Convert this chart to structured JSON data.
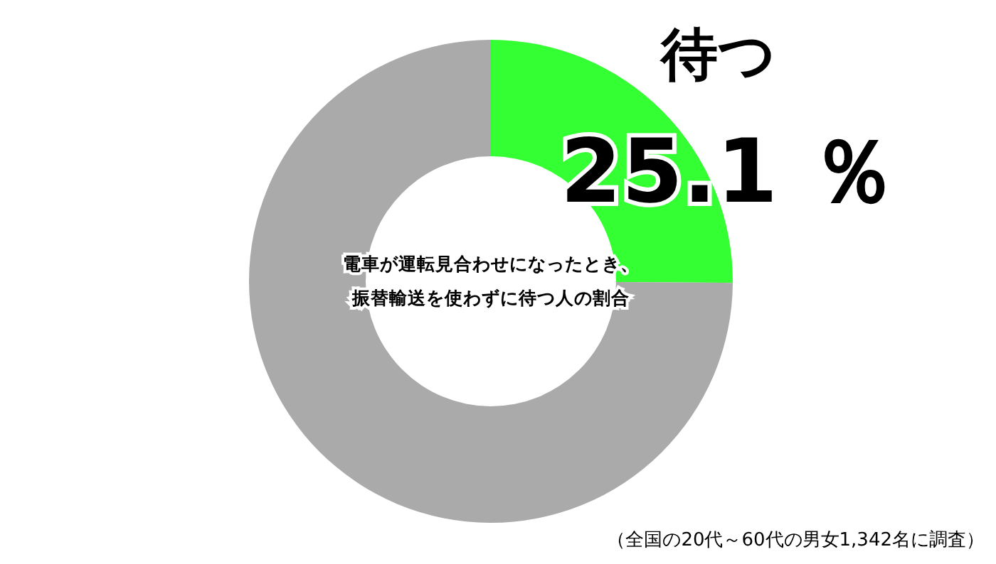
{
  "chart_data": {
    "type": "donut",
    "title": "電車が運転見合わせになったとき、振替輸送を使わずに待つ人の割合",
    "categories": [
      "待つ",
      null
    ],
    "values": [
      25.1,
      74.9
    ],
    "colors": [
      "#33ff33",
      "#aaaaaa"
    ],
    "value_labels": [
      "25.1 ％",
      null
    ],
    "legend": false,
    "annotations": [
      "（全国の20代～60代の男女1,342名に調査）"
    ]
  }
}
